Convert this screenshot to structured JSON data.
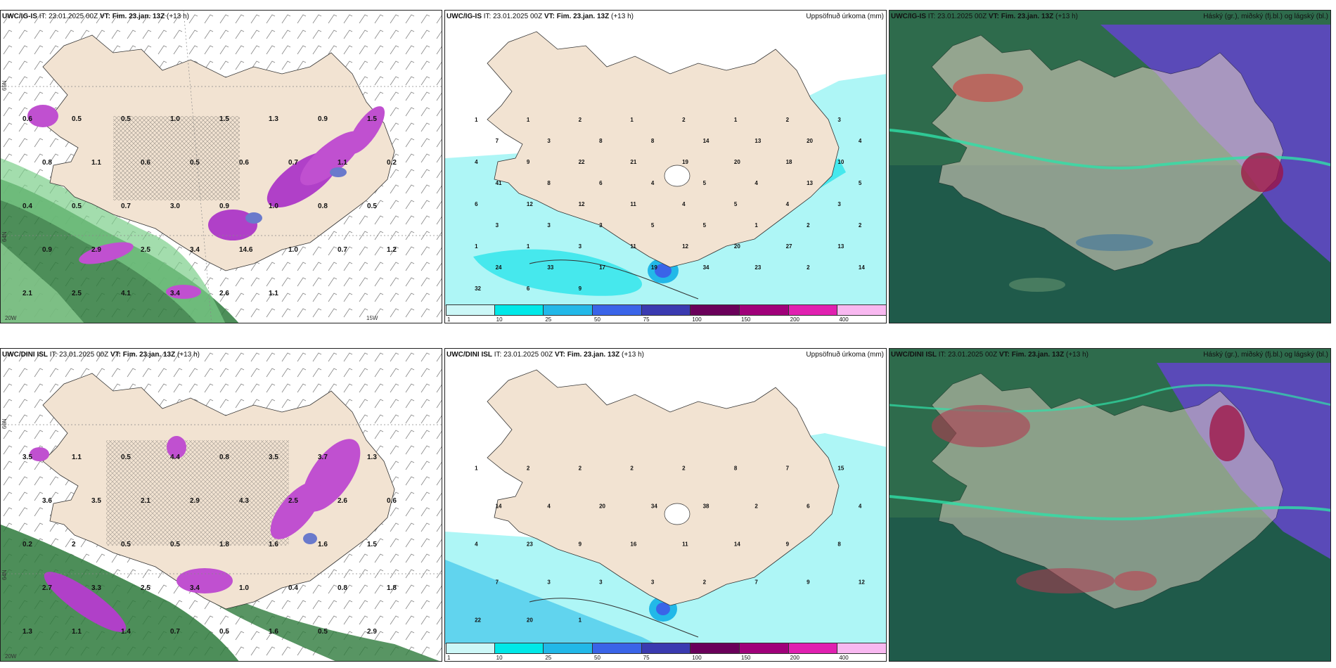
{
  "panels": [
    {
      "model": "UWC/IG-IS",
      "it": "IT: 23.01.2025 00Z",
      "vt": "VT: Fim. 23.jan. 13Z",
      "lead": "(+13 h)",
      "right": "",
      "lat_labels": [
        "65N",
        "64N"
      ],
      "lon_labels": [
        "20W",
        "15W"
      ],
      "labels": [
        "0.6",
        "0.5",
        "0.5",
        "1.0",
        "1.5",
        "1.3",
        "0.9",
        "1.5",
        "0.8",
        "1.1",
        "0.6",
        "0.5",
        "0.6",
        "0.7",
        "1.1",
        "0.2",
        "0.4",
        "0.5",
        "0.7",
        "3.0",
        "0.9",
        "1.0",
        "0.8",
        "0.5",
        "0.9",
        "2.9",
        "2.5",
        "3.4",
        "14.6",
        "1.0",
        "0.7",
        "1.2",
        "2.1",
        "2.5",
        "4.1",
        "3.4",
        "2.6",
        "1.1"
      ]
    },
    {
      "model": "UWC/IG-IS",
      "it": "IT: 23.01.2025 00Z",
      "vt": "VT: Fim. 23.jan. 13Z",
      "lead": "(+13 h)",
      "right": "Uppsöfnuð úrkoma (mm)",
      "labels": [
        "1",
        "1",
        "2",
        "1",
        "2",
        "1",
        "2",
        "3",
        "7",
        "3",
        "8",
        "8",
        "14",
        "13",
        "20",
        "4",
        "4",
        "9",
        "22",
        "21",
        "19",
        "20",
        "18",
        "10",
        "41",
        "8",
        "6",
        "4",
        "5",
        "4",
        "13",
        "5",
        "6",
        "12",
        "12",
        "11",
        "4",
        "5",
        "4",
        "3",
        "3",
        "3",
        "3",
        "5",
        "5",
        "1",
        "2",
        "2",
        "1",
        "1",
        "3",
        "11",
        "12",
        "20",
        "27",
        "13",
        "24",
        "33",
        "17",
        "19",
        "34",
        "23",
        "2",
        "14",
        "32",
        "6",
        "9"
      ]
    },
    {
      "model": "UWC/IG-IS",
      "it": "IT: 23.01.2025 00Z",
      "vt": "VT: Fim. 23.jan. 13Z",
      "lead": "(+13 h)",
      "right": "Háský (gr.), miðský (fj.bl.) og lágský (bl.)"
    },
    {
      "model": "UWC/DINI ISL",
      "it": "IT: 23.01.2025 00Z",
      "vt": "VT: Fim. 23.jan. 13Z",
      "lead": "(+13 h)",
      "right": "",
      "lat_labels": [
        "66N",
        "64N"
      ],
      "lon_labels": [
        "20W"
      ],
      "labels": [
        "3.5",
        "1.1",
        "0.5",
        "4.4",
        "0.8",
        "3.5",
        "3.7",
        "1.3",
        "3.6",
        "3.5",
        "2.1",
        "2.9",
        "4.3",
        "2.5",
        "2.6",
        "0.6",
        "0.2",
        "2",
        "0.5",
        "0.5",
        "1.8",
        "1.6",
        "1.6",
        "1.5",
        "2.7",
        "3.3",
        "2.5",
        "3.4",
        "1.0",
        "0.4",
        "0.8",
        "1.8",
        "1.3",
        "1.1",
        "1.4",
        "0.7",
        "0.5",
        "1.6",
        "0.5",
        "2.9"
      ]
    },
    {
      "model": "UWC/DINI ISL",
      "it": "IT: 23.01.2025 00Z",
      "vt": "VT: Fim. 23.jan. 13Z",
      "lead": "(+13 h)",
      "right": "Uppsöfnuð úrkoma (mm)",
      "labels": [
        "1",
        "2",
        "2",
        "2",
        "2",
        "8",
        "7",
        "15",
        "14",
        "4",
        "20",
        "34",
        "38",
        "2",
        "6",
        "4",
        "4",
        "23",
        "9",
        "16",
        "11",
        "14",
        "9",
        "8",
        "7",
        "3",
        "3",
        "3",
        "2",
        "7",
        "9",
        "12",
        "22",
        "20",
        "1"
      ]
    },
    {
      "model": "UWC/DINI ISL",
      "it": "IT: 23.01.2025 00Z",
      "vt": "VT: Fim. 23.jan. 13Z",
      "lead": "(+13 h)",
      "right": "Háský (gr.), miðský (fj.bl.) og lágský (bl.)"
    }
  ],
  "colorbar": {
    "ticks": [
      "1",
      "10",
      "25",
      "50",
      "75",
      "100",
      "150",
      "200",
      "400"
    ],
    "colors": [
      "#ccf7f7",
      "#00e8e8",
      "#22b8e8",
      "#3a64e8",
      "#3a3ab0",
      "#6a005a",
      "#a0007a",
      "#e020b0",
      "#f8b8f0"
    ]
  },
  "colors": {
    "land": "#f2e3d2",
    "sea_green": "#2e6b4c",
    "cloud_dark": "#1f5a4a",
    "cloud_blue": "#5a4ab8",
    "precip_cyan": "#aef6f6"
  }
}
